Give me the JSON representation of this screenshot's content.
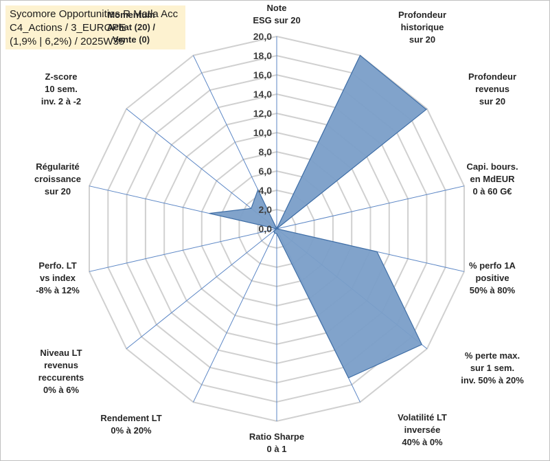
{
  "header": {
    "lines": [
      "Sycomore Opportunities R Matla Acc",
      "C4_Actions / 3_EUROPE",
      "(1,9% | 6,2%) / 2025W35"
    ]
  },
  "chart_data": {
    "type": "radar",
    "rmin": 0,
    "rmax": 20,
    "step": 2,
    "tick_labels": [
      "0,0",
      "2,0",
      "4,0",
      "6,0",
      "8,0",
      "10,0",
      "12,0",
      "14,0",
      "16,0",
      "18,0",
      "20,0"
    ],
    "axes": [
      {
        "label_lines": [
          "Note",
          "ESG sur 20"
        ]
      },
      {
        "label_lines": [
          "Profondeur",
          "historique",
          "sur 20"
        ]
      },
      {
        "label_lines": [
          "Profondeur",
          "revenus",
          "sur 20"
        ]
      },
      {
        "label_lines": [
          "Capi. bours.",
          "en MdEUR",
          "0 à 60 G€"
        ]
      },
      {
        "label_lines": [
          "% perfo 1A",
          "positive",
          "50% à 80%"
        ]
      },
      {
        "label_lines": [
          "% perte max.",
          "sur 1 sem.",
          "inv. 50% à 20%"
        ]
      },
      {
        "label_lines": [
          "Volatilité LT",
          "inversée",
          "40% à 0%"
        ]
      },
      {
        "label_lines": [
          "Ratio Sharpe",
          "0 à 1"
        ]
      },
      {
        "label_lines": [
          "Rendement LT",
          "0% à 20%"
        ]
      },
      {
        "label_lines": [
          "Niveau LT",
          "revenus",
          "reccurents",
          "0% à 6%"
        ]
      },
      {
        "label_lines": [
          "Perfo. LT",
          "vs index",
          "-8% à 12%"
        ]
      },
      {
        "label_lines": [
          "Régularité",
          "croissance",
          "sur 20"
        ]
      },
      {
        "label_lines": [
          "Z-score",
          "10 sem.",
          "inv. 2 à -2"
        ]
      },
      {
        "label_lines": [
          "Momentum",
          "Achat (20) /",
          "Vente (0)"
        ]
      }
    ],
    "series": [
      {
        "values": [
          0,
          20,
          19.9,
          0,
          10.7,
          19.3,
          17.2,
          0.5,
          0.5,
          0.4,
          0,
          7.2,
          3.4,
          4.5
        ],
        "fill": "#7a9ec8",
        "stroke": "#3f6ea6"
      }
    ],
    "grid_color": "#d0d0d0",
    "spoke_color": "#5b86c5"
  }
}
